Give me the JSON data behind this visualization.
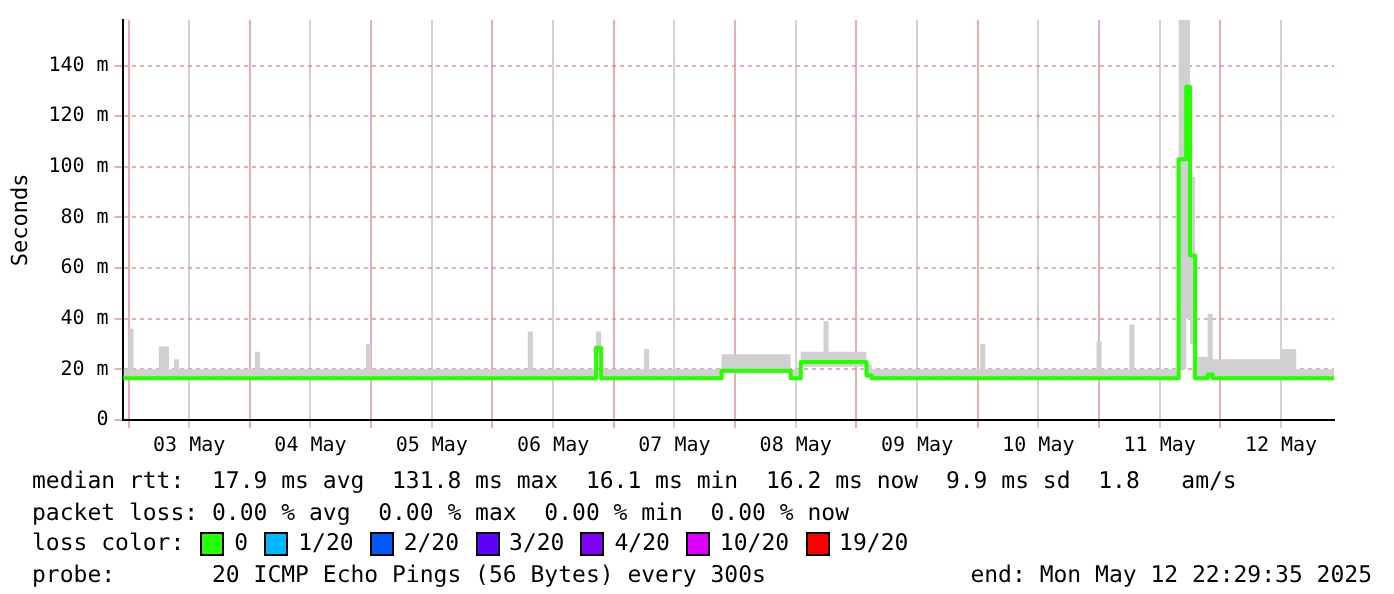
{
  "chart_data": {
    "type": "step",
    "ylabel": "Seconds",
    "legend": "bottom",
    "legend_title": "loss color:",
    "grid": true,
    "x": [
      "2025-05-02T23:00",
      "2025-05-03T00:00",
      "2025-05-03T01:00",
      "2025-05-03T06:00",
      "2025-05-03T08:00",
      "2025-05-03T09:00",
      "2025-05-03T10:00",
      "2025-05-04T01:00",
      "2025-05-04T02:00",
      "2025-05-04T23:00",
      "2025-05-05T00:00",
      "2025-05-06T07:00",
      "2025-05-06T08:00",
      "2025-05-06T20:30",
      "2025-05-06T21:30",
      "2025-05-07T06:00",
      "2025-05-07T07:00",
      "2025-05-07T21:20",
      "2025-05-08T11:00",
      "2025-05-08T13:00",
      "2025-05-08T17:30",
      "2025-05-08T18:30",
      "2025-05-09T02:00",
      "2025-05-09T03:00",
      "2025-05-10T00:30",
      "2025-05-10T01:30",
      "2025-05-10T23:30",
      "2025-05-11T00:30",
      "2025-05-11T06:00",
      "2025-05-11T07:00",
      "2025-05-11T15:45",
      "2025-05-11T17:15",
      "2025-05-11T18:00",
      "2025-05-11T19:00",
      "2025-05-11T21:30",
      "2025-05-11T22:30",
      "2025-05-12T12:00",
      "2025-05-12T15:00",
      "2025-05-12T22:29"
    ],
    "series": [
      {
        "name": "0",
        "color": "#26ff00",
        "values": [
          16.5,
          16.5,
          16.5,
          16.5,
          16.5,
          16.5,
          16.5,
          16.5,
          16.5,
          16.5,
          16.5,
          16.5,
          16.5,
          28.5,
          16.5,
          16.5,
          16.5,
          19.5,
          16.5,
          22.9,
          22.9,
          22.9,
          17.6,
          16.5,
          16.5,
          16.5,
          16.5,
          16.5,
          16.5,
          16.5,
          103,
          131.6,
          65,
          16.5,
          18,
          16.5,
          16.5,
          16.5,
          16.5
        ],
        "lower": [
          16,
          16,
          16,
          16,
          16,
          16,
          16,
          16,
          16,
          16,
          16,
          16,
          16,
          26,
          16,
          16,
          16,
          18.5,
          16,
          21,
          21,
          21,
          16.5,
          16,
          16,
          16,
          16,
          16,
          16,
          16,
          20,
          40,
          30,
          16,
          16.5,
          16,
          16,
          16,
          16
        ],
        "upper": [
          20,
          36,
          20,
          29,
          20,
          24,
          20,
          27,
          20,
          30,
          20,
          35,
          20,
          35,
          20,
          28,
          20,
          26,
          20,
          27,
          39,
          27,
          22,
          20,
          30,
          20,
          31,
          20,
          37.7,
          20,
          158,
          158,
          96,
          25,
          42,
          24,
          28,
          20,
          20
        ]
      },
      {
        "name": "1/20",
        "color": "#00b8ff",
        "values": [
          null,
          null,
          null,
          null,
          null,
          null,
          null,
          null,
          null,
          null,
          null,
          null,
          null,
          null,
          null,
          null,
          null,
          null,
          null,
          null,
          null,
          null,
          null,
          null,
          null,
          null,
          null,
          null,
          null,
          null,
          null,
          null,
          null,
          null,
          null,
          null,
          null,
          null,
          null
        ]
      },
      {
        "name": "2/20",
        "color": "#0059ff",
        "values": [
          null,
          null,
          null,
          null,
          null,
          null,
          null,
          null,
          null,
          null,
          null,
          null,
          null,
          null,
          null,
          null,
          null,
          null,
          null,
          null,
          null,
          null,
          null,
          null,
          null,
          null,
          null,
          null,
          null,
          null,
          null,
          null,
          null,
          null,
          null,
          null,
          null,
          null,
          null
        ]
      },
      {
        "name": "3/20",
        "color": "#5e00ff",
        "values": [
          null,
          null,
          null,
          null,
          null,
          null,
          null,
          null,
          null,
          null,
          null,
          null,
          null,
          null,
          null,
          null,
          null,
          null,
          null,
          null,
          null,
          null,
          null,
          null,
          null,
          null,
          null,
          null,
          null,
          null,
          null,
          null,
          null,
          null,
          null,
          null,
          null,
          null,
          null
        ]
      },
      {
        "name": "4/20",
        "color": "#7e00ff",
        "values": [
          null,
          null,
          null,
          null,
          null,
          null,
          null,
          null,
          null,
          null,
          null,
          null,
          null,
          null,
          null,
          null,
          null,
          null,
          null,
          null,
          null,
          null,
          null,
          null,
          null,
          null,
          null,
          null,
          null,
          null,
          null,
          null,
          null,
          null,
          null,
          null,
          null,
          null,
          null
        ]
      },
      {
        "name": "10/20",
        "color": "#dd00ff",
        "values": [
          null,
          null,
          null,
          null,
          null,
          null,
          null,
          null,
          null,
          null,
          null,
          null,
          null,
          null,
          null,
          null,
          null,
          null,
          null,
          null,
          null,
          null,
          null,
          null,
          null,
          null,
          null,
          null,
          null,
          null,
          null,
          null,
          null,
          null,
          null,
          null,
          null,
          null,
          null
        ]
      },
      {
        "name": "19/20",
        "color": "#ff0000",
        "values": [
          null,
          null,
          null,
          null,
          null,
          null,
          null,
          null,
          null,
          null,
          null,
          null,
          null,
          null,
          null,
          null,
          null,
          null,
          null,
          null,
          null,
          null,
          null,
          null,
          null,
          null,
          null,
          null,
          null,
          null,
          null,
          null,
          null,
          null,
          null,
          null,
          null,
          null,
          null
        ]
      }
    ],
    "xlim": [
      "2025-05-02T22:50",
      "2025-05-12T22:29"
    ],
    "xticks": [
      {
        "value": "2025-05-03T00:00",
        "label": null
      },
      {
        "value": "2025-05-03T12:00",
        "label": "03 May"
      },
      {
        "value": "2025-05-04T00:00",
        "label": null
      },
      {
        "value": "2025-05-04T12:00",
        "label": "04 May"
      },
      {
        "value": "2025-05-05T00:00",
        "label": null
      },
      {
        "value": "2025-05-05T12:00",
        "label": "05 May"
      },
      {
        "value": "2025-05-06T00:00",
        "label": null
      },
      {
        "value": "2025-05-06T12:00",
        "label": "06 May"
      },
      {
        "value": "2025-05-07T00:00",
        "label": null
      },
      {
        "value": "2025-05-07T12:00",
        "label": "07 May"
      },
      {
        "value": "2025-05-08T00:00",
        "label": null
      },
      {
        "value": "2025-05-08T12:00",
        "label": "08 May"
      },
      {
        "value": "2025-05-09T00:00",
        "label": null
      },
      {
        "value": "2025-05-09T12:00",
        "label": "09 May"
      },
      {
        "value": "2025-05-10T00:00",
        "label": null
      },
      {
        "value": "2025-05-10T12:00",
        "label": "10 May"
      },
      {
        "value": "2025-05-11T00:00",
        "label": null
      },
      {
        "value": "2025-05-11T12:00",
        "label": "11 May"
      },
      {
        "value": "2025-05-12T00:00",
        "label": null
      },
      {
        "value": "2025-05-12T12:00",
        "label": "12 May"
      }
    ],
    "ylim": [
      0,
      158
    ],
    "yticks": [
      0,
      {
        "value": 20,
        "label": "20 m"
      },
      {
        "value": 40,
        "label": "40 m"
      },
      {
        "value": 60,
        "label": "60 m"
      },
      {
        "value": 80,
        "label": "80 m"
      },
      {
        "value": 100,
        "label": "100 m"
      },
      {
        "value": 120,
        "label": "120 m"
      },
      {
        "value": 140,
        "label": "140 m"
      }
    ],
    "annotations": [
      "median rtt:  17.9 ms avg  131.8 ms max  16.1 ms min  16.2 ms now  9.9 ms sd  1.8   am/s",
      "packet loss: 0.00 % avg  0.00 % max  0.00 % min  0.00 % now",
      "probe:       20 ICMP Echo Pings (56 Bytes) every 300s",
      "end: Mon May 12 22:29:35 2025"
    ]
  }
}
